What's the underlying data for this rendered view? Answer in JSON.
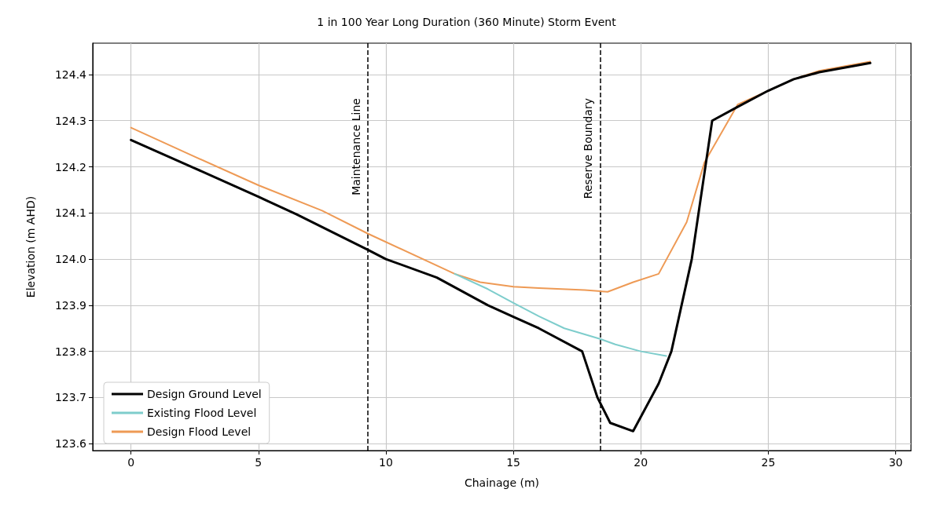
{
  "chart_data": {
    "type": "line",
    "title": "1 in 100 Year Long Duration (360 Minute) Storm Event",
    "xlabel": "Chainage (m)",
    "ylabel": "Elevation (m AHD)",
    "xlim": [
      -1.5,
      30.6
    ],
    "xticks": [
      0,
      5,
      10,
      15,
      20,
      25,
      30
    ],
    "ylim": [
      123.585,
      124.468
    ],
    "yticks": [
      123.6,
      123.7,
      123.8,
      123.9,
      {
        "value": 124,
        "label": "124.0"
      },
      124.1,
      124.2,
      124.3,
      124.4
    ],
    "grid": true,
    "legend": "bottom left",
    "line_style": "solid",
    "marker": "none",
    "series": [
      {
        "name": "Design Ground Level",
        "color": "#000000",
        "x": [
          0,
          2.5,
          5,
          6.5,
          9.3,
          10,
          12,
          14,
          15,
          16,
          17.7,
          18.3,
          18.8,
          19.7,
          20.7,
          21.2,
          22,
          22.8,
          23.8,
          25,
          26,
          27,
          29
        ],
        "values": [
          124.258,
          124.197,
          124.135,
          124.097,
          124.02,
          124.0,
          123.96,
          123.9,
          123.875,
          123.85,
          123.8,
          123.7,
          123.645,
          123.627,
          123.73,
          123.8,
          124.0,
          124.3,
          124.33,
          124.365,
          124.39,
          124.405,
          124.425
        ]
      },
      {
        "name": "Existing Flood Level",
        "color": "#7ecdcc",
        "x": [
          12.7,
          14,
          15,
          16,
          17,
          18.4,
          19,
          20,
          21
        ],
        "values": [
          123.968,
          123.935,
          123.905,
          123.876,
          123.85,
          123.827,
          123.815,
          123.8,
          123.79
        ]
      },
      {
        "name": "Design Flood Level",
        "color": "#ee9a55",
        "x": [
          0,
          2.5,
          5,
          7.5,
          9.3,
          12.7,
          13.7,
          15,
          16,
          17.8,
          18.7,
          19.7,
          20.7,
          21.8,
          22.5,
          23.8,
          25,
          26,
          27,
          29
        ],
        "values": [
          124.285,
          124.222,
          124.16,
          124.105,
          124.055,
          123.968,
          123.95,
          123.94,
          123.937,
          123.933,
          123.929,
          123.95,
          123.968,
          124.08,
          124.21,
          124.335,
          124.365,
          124.39,
          124.408,
          124.428
        ]
      }
    ],
    "ref_lines": [
      {
        "axis": "x",
        "value": 9.3,
        "label": "Maintenance Line",
        "color": "#000000",
        "line_style": "dashed"
      },
      {
        "axis": "x",
        "value": 18.4,
        "label": "Reserve Boundary",
        "color": "#000000",
        "line_style": "dashed"
      }
    ]
  }
}
